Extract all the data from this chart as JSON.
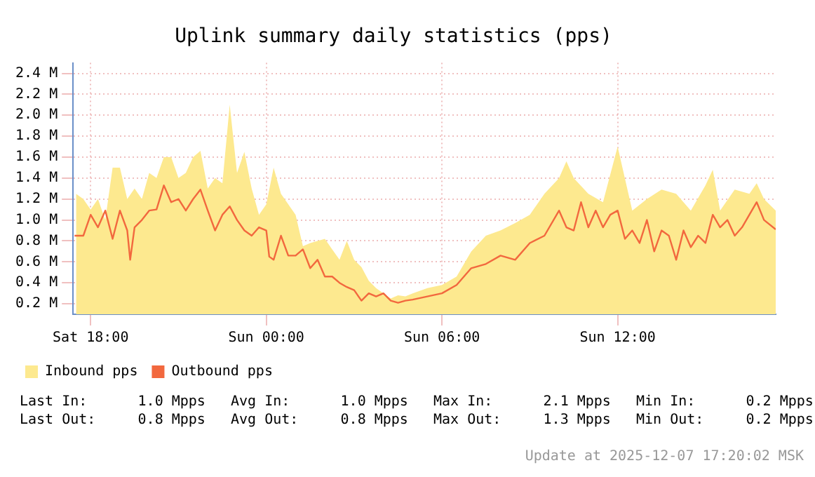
{
  "chart_data": {
    "type": "line",
    "title": "Uplink summary daily statistics (pps)",
    "xlim": [
      "2025-12-06T17:24",
      "2025-12-07T17:24"
    ],
    "xticks": [
      {
        "value": "2025-12-06T18:00",
        "label": "Sat 18:00"
      },
      {
        "value": "2025-12-07T00:00",
        "label": "Sun 00:00"
      },
      {
        "value": "2025-12-07T06:00",
        "label": "Sun 06:00"
      },
      {
        "value": "2025-12-07T12:00",
        "label": "Sun 12:00"
      }
    ],
    "ylim": [
      0.1,
      2.5
    ],
    "yticks": [
      {
        "value": 0.2,
        "label": "0.2 M"
      },
      {
        "value": 0.4,
        "label": "0.4 M"
      },
      {
        "value": 0.6,
        "label": "0.6 M"
      },
      {
        "value": 0.8,
        "label": "0.8 M"
      },
      {
        "value": 1.0,
        "label": "1.0 M"
      },
      {
        "value": 1.2,
        "label": "1.2 M"
      },
      {
        "value": 1.4,
        "label": "1.4 M"
      },
      {
        "value": 1.6,
        "label": "1.6 M"
      },
      {
        "value": 1.8,
        "label": "1.8 M"
      },
      {
        "value": 2.0,
        "label": "2.0 M"
      },
      {
        "value": 2.2,
        "label": "2.2 M"
      },
      {
        "value": 2.4,
        "label": "2.4 M"
      }
    ],
    "grid": true,
    "legend": "bottom",
    "marker": "none",
    "series": [
      {
        "name": "Inbound pps",
        "type": "area",
        "color": "#fde98f",
        "x": [
          "2025-12-06T17:30",
          "2025-12-06T17:45",
          "2025-12-06T18:00",
          "2025-12-06T18:15",
          "2025-12-06T18:30",
          "2025-12-06T18:45",
          "2025-12-06T19:00",
          "2025-12-06T19:15",
          "2025-12-06T19:30",
          "2025-12-06T19:45",
          "2025-12-06T20:00",
          "2025-12-06T20:15",
          "2025-12-06T20:30",
          "2025-12-06T20:45",
          "2025-12-06T21:00",
          "2025-12-06T21:15",
          "2025-12-06T21:30",
          "2025-12-06T21:45",
          "2025-12-06T22:00",
          "2025-12-06T22:15",
          "2025-12-06T22:30",
          "2025-12-06T22:45",
          "2025-12-06T23:00",
          "2025-12-06T23:15",
          "2025-12-06T23:30",
          "2025-12-06T23:45",
          "2025-12-07T00:00",
          "2025-12-07T00:15",
          "2025-12-07T00:30",
          "2025-12-07T00:45",
          "2025-12-07T01:00",
          "2025-12-07T01:15",
          "2025-12-07T01:30",
          "2025-12-07T01:45",
          "2025-12-07T02:00",
          "2025-12-07T02:15",
          "2025-12-07T02:30",
          "2025-12-07T02:45",
          "2025-12-07T03:00",
          "2025-12-07T03:15",
          "2025-12-07T03:30",
          "2025-12-07T03:45",
          "2025-12-07T04:00",
          "2025-12-07T04:15",
          "2025-12-07T04:30",
          "2025-12-07T04:45",
          "2025-12-07T05:00",
          "2025-12-07T05:30",
          "2025-12-07T06:00",
          "2025-12-07T06:30",
          "2025-12-07T07:00",
          "2025-12-07T07:30",
          "2025-12-07T08:00",
          "2025-12-07T08:30",
          "2025-12-07T09:00",
          "2025-12-07T09:30",
          "2025-12-07T10:00",
          "2025-12-07T10:15",
          "2025-12-07T10:30",
          "2025-12-07T11:00",
          "2025-12-07T11:30",
          "2025-12-07T12:00",
          "2025-12-07T12:30",
          "2025-12-07T13:00",
          "2025-12-07T13:30",
          "2025-12-07T14:00",
          "2025-12-07T14:30",
          "2025-12-07T15:00",
          "2025-12-07T15:15",
          "2025-12-07T15:30",
          "2025-12-07T16:00",
          "2025-12-07T16:30",
          "2025-12-07T16:45",
          "2025-12-07T17:00",
          "2025-12-07T17:24"
        ],
        "values": [
          1.25,
          1.2,
          1.1,
          1.2,
          1.0,
          1.5,
          1.5,
          1.2,
          1.3,
          1.2,
          1.45,
          1.4,
          1.6,
          1.6,
          1.4,
          1.45,
          1.6,
          1.66,
          1.3,
          1.4,
          1.35,
          2.1,
          1.45,
          1.65,
          1.3,
          1.05,
          1.15,
          1.5,
          1.25,
          1.15,
          1.05,
          0.75,
          0.78,
          0.8,
          0.82,
          0.72,
          0.62,
          0.8,
          0.62,
          0.55,
          0.42,
          0.35,
          0.3,
          0.25,
          0.28,
          0.27,
          0.3,
          0.35,
          0.38,
          0.46,
          0.7,
          0.85,
          0.9,
          0.97,
          1.05,
          1.25,
          1.4,
          1.56,
          1.4,
          1.25,
          1.17,
          1.7,
          1.09,
          1.2,
          1.29,
          1.25,
          1.09,
          1.33,
          1.48,
          1.09,
          1.29,
          1.25,
          1.35,
          1.2,
          1.09
        ]
      },
      {
        "name": "Outbound pps",
        "type": "line",
        "color": "#f2683e",
        "x": [
          "2025-12-06T17:27",
          "2025-12-06T17:45",
          "2025-12-06T18:00",
          "2025-12-06T18:15",
          "2025-12-06T18:30",
          "2025-12-06T18:45",
          "2025-12-06T19:00",
          "2025-12-06T19:15",
          "2025-12-06T19:21",
          "2025-12-06T19:30",
          "2025-12-06T19:45",
          "2025-12-06T20:00",
          "2025-12-06T20:15",
          "2025-12-06T20:30",
          "2025-12-06T20:45",
          "2025-12-06T21:00",
          "2025-12-06T21:15",
          "2025-12-06T21:30",
          "2025-12-06T21:45",
          "2025-12-06T22:00",
          "2025-12-06T22:15",
          "2025-12-06T22:30",
          "2025-12-06T22:45",
          "2025-12-06T23:00",
          "2025-12-06T23:15",
          "2025-12-06T23:30",
          "2025-12-06T23:45",
          "2025-12-07T00:00",
          "2025-12-07T00:06",
          "2025-12-07T00:15",
          "2025-12-07T00:30",
          "2025-12-07T00:45",
          "2025-12-07T01:00",
          "2025-12-07T01:15",
          "2025-12-07T01:30",
          "2025-12-07T01:45",
          "2025-12-07T02:00",
          "2025-12-07T02:15",
          "2025-12-07T02:30",
          "2025-12-07T02:45",
          "2025-12-07T03:00",
          "2025-12-07T03:15",
          "2025-12-07T03:30",
          "2025-12-07T03:45",
          "2025-12-07T04:00",
          "2025-12-07T04:15",
          "2025-12-07T04:30",
          "2025-12-07T04:45",
          "2025-12-07T05:00",
          "2025-12-07T05:30",
          "2025-12-07T06:00",
          "2025-12-07T06:30",
          "2025-12-07T07:00",
          "2025-12-07T07:30",
          "2025-12-07T08:00",
          "2025-12-07T08:30",
          "2025-12-07T09:00",
          "2025-12-07T09:30",
          "2025-12-07T10:00",
          "2025-12-07T10:15",
          "2025-12-07T10:30",
          "2025-12-07T10:45",
          "2025-12-07T11:00",
          "2025-12-07T11:15",
          "2025-12-07T11:30",
          "2025-12-07T11:45",
          "2025-12-07T12:00",
          "2025-12-07T12:15",
          "2025-12-07T12:30",
          "2025-12-07T12:45",
          "2025-12-07T13:00",
          "2025-12-07T13:15",
          "2025-12-07T13:30",
          "2025-12-07T13:45",
          "2025-12-07T14:00",
          "2025-12-07T14:15",
          "2025-12-07T14:30",
          "2025-12-07T14:45",
          "2025-12-07T15:00",
          "2025-12-07T15:15",
          "2025-12-07T15:30",
          "2025-12-07T15:45",
          "2025-12-07T16:00",
          "2025-12-07T16:15",
          "2025-12-07T16:30",
          "2025-12-07T16:45",
          "2025-12-07T17:00",
          "2025-12-07T17:24"
        ],
        "values": [
          0.85,
          0.85,
          1.05,
          0.93,
          1.09,
          0.82,
          1.09,
          0.9,
          0.62,
          0.93,
          1.0,
          1.09,
          1.1,
          1.33,
          1.17,
          1.2,
          1.09,
          1.2,
          1.29,
          1.09,
          0.9,
          1.05,
          1.13,
          1.0,
          0.9,
          0.85,
          0.93,
          0.9,
          0.65,
          0.62,
          0.85,
          0.66,
          0.66,
          0.72,
          0.54,
          0.62,
          0.46,
          0.46,
          0.4,
          0.36,
          0.33,
          0.23,
          0.3,
          0.27,
          0.3,
          0.23,
          0.21,
          0.23,
          0.24,
          0.27,
          0.3,
          0.38,
          0.54,
          0.58,
          0.66,
          0.62,
          0.78,
          0.85,
          1.09,
          0.93,
          0.9,
          1.17,
          0.93,
          1.09,
          0.93,
          1.05,
          1.09,
          0.82,
          0.9,
          0.78,
          1.0,
          0.7,
          0.9,
          0.85,
          0.62,
          0.9,
          0.74,
          0.85,
          0.78,
          1.05,
          0.93,
          1.0,
          0.85,
          0.93,
          1.05,
          1.17,
          1.0,
          0.91
        ]
      }
    ],
    "annotations": [
      "Last In:      1.0 Mpps   Avg In:      1.0 Mpps   Max In:      2.1 Mpps   Min In:      0.2 Mpps",
      "Last Out:     0.8 Mpps   Avg Out:     0.8 Mpps   Max Out:     1.3 Mpps   Min Out:     0.2 Mpps",
      "Update at 2025-12-07 17:20:02 MSK"
    ]
  }
}
